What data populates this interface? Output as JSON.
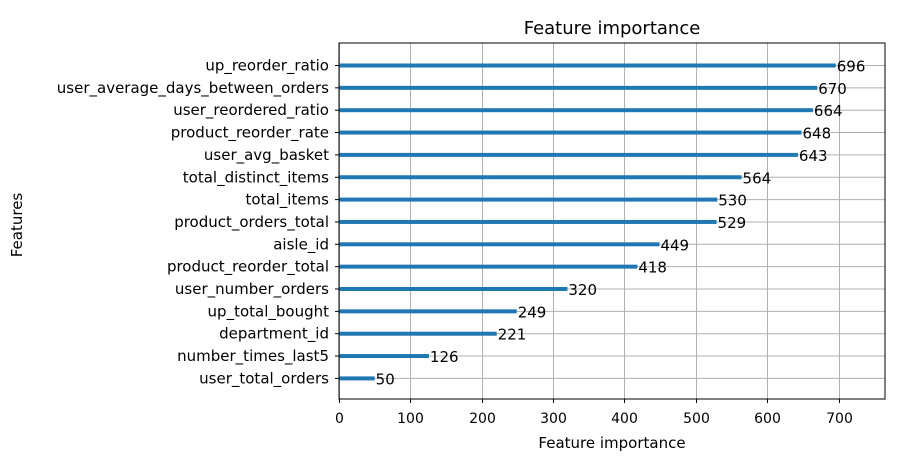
{
  "chart_data": {
    "type": "bar",
    "orientation": "horizontal",
    "title": "Feature importance",
    "xlabel": "Feature importance",
    "ylabel": "Features",
    "xlim": [
      0,
      765
    ],
    "xticks": [
      0,
      100,
      200,
      300,
      400,
      500,
      600,
      700
    ],
    "grid": true,
    "categories": [
      "up_reorder_ratio",
      "user_average_days_between_orders",
      "user_reordered_ratio",
      "product_reorder_rate",
      "user_avg_basket",
      "total_distinct_items",
      "total_items",
      "product_orders_total",
      "aisle_id",
      "product_reorder_total",
      "user_number_orders",
      "up_total_bought",
      "department_id",
      "number_times_last5",
      "user_total_orders"
    ],
    "values": [
      696,
      670,
      664,
      648,
      643,
      564,
      530,
      529,
      449,
      418,
      320,
      249,
      221,
      126,
      50
    ],
    "colors": {
      "bar": "#1f77b4",
      "grid": "#b0b0b0",
      "axis": "#000000"
    }
  }
}
